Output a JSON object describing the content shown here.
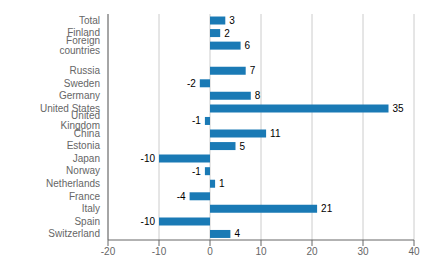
{
  "chart_data": {
    "type": "bar",
    "orientation": "horizontal",
    "categories": [
      "Switzerland",
      "Spain",
      "Italy",
      "France",
      "Netherlands",
      "Norway",
      "Japan",
      "Estonia",
      "China",
      "United Kingdom",
      "United States",
      "Germany",
      "Sweden",
      "Russia",
      null,
      "Foreign countries",
      "Finland",
      "Total"
    ],
    "values": [
      4,
      -10,
      21,
      -4,
      1,
      -1,
      -10,
      5,
      11,
      -1,
      35,
      8,
      -2,
      7,
      null,
      6,
      2,
      3
    ],
    "color": "#1a7ab5",
    "xlim": [
      -20,
      40
    ],
    "xticks": [
      -20,
      -10,
      0,
      10,
      20,
      30,
      40
    ],
    "grid": true,
    "data_labels": true
  }
}
